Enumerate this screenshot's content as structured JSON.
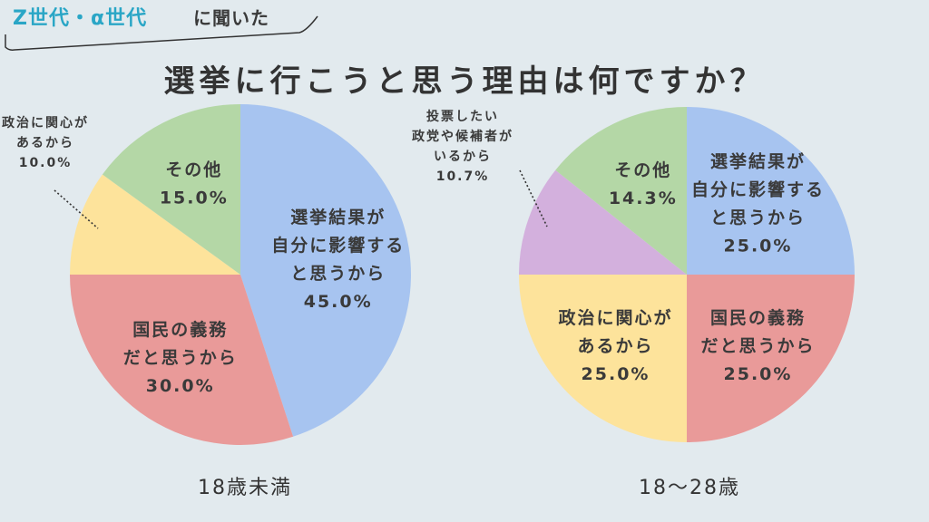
{
  "header": {
    "tag_accent": "Z世代・α世代",
    "tag_rest": "に聞いた"
  },
  "title": "選挙に行こうと思う理由は何ですか？",
  "colors": {
    "blue": "#a7c4f0",
    "green": "#b4d7a6",
    "yellow": "#fde39b",
    "red": "#e99a99",
    "purple": "#d3b0dd",
    "accent": "#2aa6c6",
    "background": "#e2eaee"
  },
  "chart_data": [
    {
      "type": "pie",
      "title": "18歳未満",
      "slices": [
        {
          "lines": [
            "選挙結果が",
            "自分に影響する",
            "と思うから"
          ],
          "pct": "45.0%",
          "value": 45.0,
          "color": "#a7c4f0",
          "label_outside": false
        },
        {
          "lines": [
            "国民の義務",
            "だと思うから"
          ],
          "pct": "30.0%",
          "value": 30.0,
          "color": "#e99a99",
          "label_outside": false
        },
        {
          "lines": [
            "政治に関心が",
            "あるから"
          ],
          "pct": "10.0%",
          "value": 10.0,
          "color": "#fde39b",
          "label_outside": true
        },
        {
          "lines": [
            "その他"
          ],
          "pct": "15.0%",
          "value": 15.0,
          "color": "#b4d7a6",
          "label_outside": false
        }
      ]
    },
    {
      "type": "pie",
      "title": "18〜28歳",
      "slices": [
        {
          "lines": [
            "選挙結果が",
            "自分に影響する",
            "と思うから"
          ],
          "pct": "25.0%",
          "value": 25.0,
          "color": "#a7c4f0",
          "label_outside": false
        },
        {
          "lines": [
            "国民の義務",
            "だと思うから"
          ],
          "pct": "25.0%",
          "value": 25.0,
          "color": "#e99a99",
          "label_outside": false
        },
        {
          "lines": [
            "政治に関心が",
            "あるから"
          ],
          "pct": "25.0%",
          "value": 25.0,
          "color": "#fde39b",
          "label_outside": false
        },
        {
          "lines": [
            "投票したい",
            "政党や候補者が",
            "いるから"
          ],
          "pct": "10.7%",
          "value": 10.7,
          "color": "#d3b0dd",
          "label_outside": true
        },
        {
          "lines": [
            "その他"
          ],
          "pct": "14.3%",
          "value": 14.3,
          "color": "#b4d7a6",
          "label_outside": false
        }
      ]
    }
  ]
}
